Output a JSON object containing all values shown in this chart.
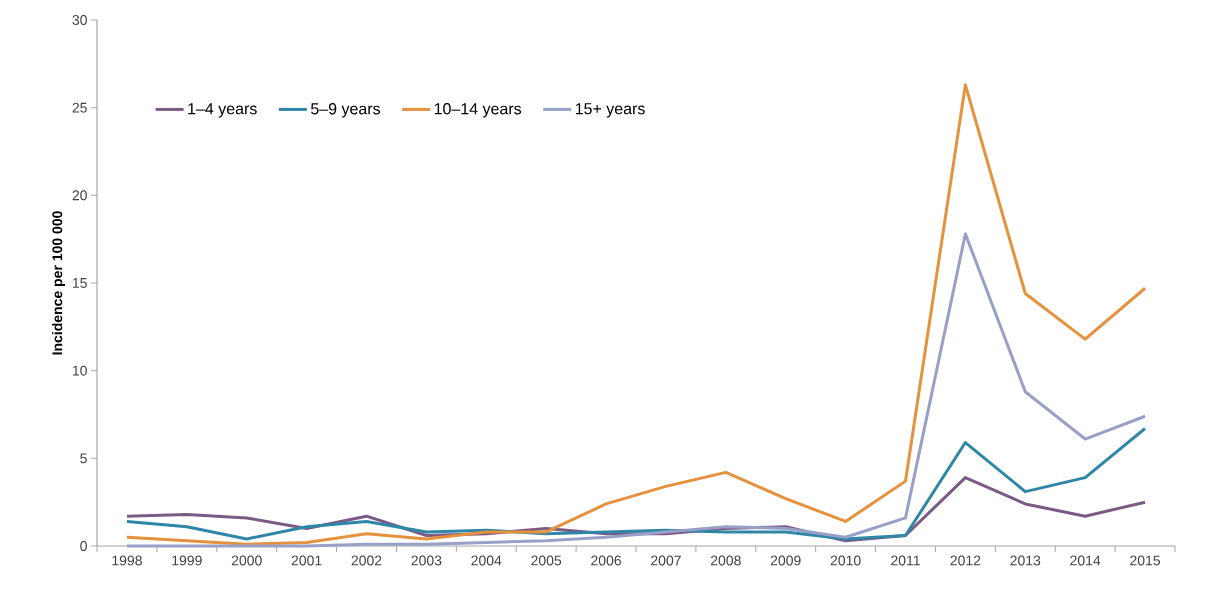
{
  "chart_data": {
    "type": "line",
    "ylabel": "Incidence per 100 000",
    "categories": [
      "1998",
      "1999",
      "2000",
      "2001",
      "2002",
      "2003",
      "2004",
      "2005",
      "2006",
      "2007",
      "2008",
      "2009",
      "2010",
      "2011",
      "2012",
      "2013",
      "2014",
      "2015"
    ],
    "series": [
      {
        "name": "1–4 years",
        "color": "#7b5a86",
        "values": [
          1.7,
          1.8,
          1.6,
          1.0,
          1.7,
          0.6,
          0.7,
          1.0,
          0.7,
          0.7,
          1.0,
          1.1,
          0.3,
          0.6,
          3.9,
          2.4,
          1.7,
          2.5
        ]
      },
      {
        "name": "5–9 years",
        "color": "#2f87a8",
        "values": [
          1.4,
          1.1,
          0.4,
          1.1,
          1.4,
          0.8,
          0.9,
          0.7,
          0.8,
          0.9,
          0.8,
          0.8,
          0.4,
          0.6,
          5.9,
          3.1,
          3.9,
          6.7
        ]
      },
      {
        "name": "10–14 years",
        "color": "#e5913d",
        "values": [
          0.5,
          0.3,
          0.1,
          0.2,
          0.7,
          0.4,
          0.8,
          0.8,
          2.4,
          3.4,
          4.2,
          2.7,
          1.4,
          3.7,
          26.3,
          14.4,
          11.8,
          14.7
        ]
      },
      {
        "name": "15+ years",
        "color": "#98a0c8",
        "values": [
          0,
          0,
          0,
          0,
          0.1,
          0.1,
          0.2,
          0.3,
          0.5,
          0.8,
          1.1,
          1.0,
          0.5,
          1.6,
          17.8,
          8.8,
          6.1,
          7.4
        ]
      }
    ],
    "ylim": [
      0,
      30
    ],
    "yticks": [
      0,
      5,
      10,
      15,
      20,
      25,
      30
    ],
    "grid": false,
    "legend": "top left",
    "marker": "none",
    "line_style": "solid"
  }
}
